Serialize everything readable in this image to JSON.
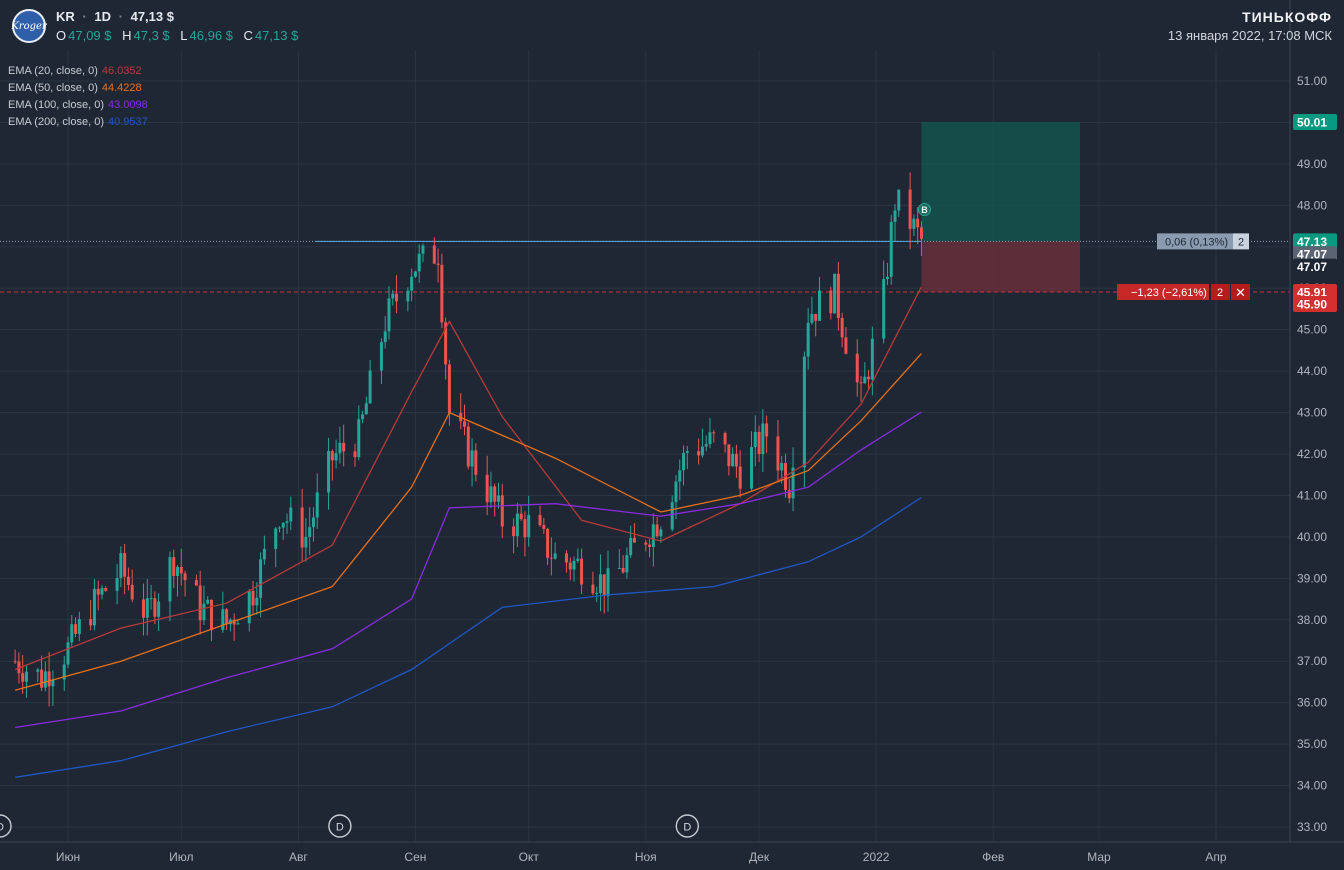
{
  "header": {
    "logo_text": "Kroger",
    "symbol": "KR",
    "interval": "1D",
    "price": "47,13 $",
    "ohlc": [
      {
        "key": "O",
        "value": "47,09 $"
      },
      {
        "key": "H",
        "value": "47,3 $"
      },
      {
        "key": "L",
        "value": "46,96 $"
      },
      {
        "key": "C",
        "value": "47,13 $"
      }
    ],
    "brand": "ТИНЬКОФФ",
    "datetime": "13 января 2022, 17:08 МСК"
  },
  "indicators": [
    {
      "label": "EMA (20, close, 0)",
      "value": "46.0352",
      "color": "#b83a3a"
    },
    {
      "label": "EMA (50, close, 0)",
      "value": "44.4228",
      "color": "#e8701a"
    },
    {
      "label": "EMA (100, close, 0)",
      "value": "43.0098",
      "color": "#8a2be2"
    },
    {
      "label": "EMA (200, close, 0)",
      "value": "40.9537",
      "color": "#1f57c6"
    }
  ],
  "colors": {
    "up": "#26a69a",
    "down": "#ef5350",
    "background": "#1e2733",
    "grid": "#2a3442"
  },
  "chart_data": {
    "type": "candlestick",
    "x_labels": [
      "Июн",
      "Июл",
      "Авг",
      "Сен",
      "Окт",
      "Ноя",
      "Дек",
      "2022",
      "Фев",
      "Мар",
      "Апр"
    ],
    "y_ticks": [
      "51.00",
      "50.00",
      "49.00",
      "48.00",
      "47.00",
      "46.00",
      "45.00",
      "44.00",
      "43.00",
      "42.00",
      "41.00",
      "40.00",
      "39.00",
      "38.00",
      "37.00",
      "36.00",
      "35.00",
      "34.00",
      "33.00"
    ],
    "ylim": [
      32.7,
      51.6
    ],
    "close_series": [
      [
        "2021-05-18",
        37.0
      ],
      [
        "2021-05-25",
        36.6
      ],
      [
        "2021-06-01",
        37.3
      ],
      [
        "2021-06-08",
        38.4
      ],
      [
        "2021-06-15",
        39.2
      ],
      [
        "2021-06-22",
        38.1
      ],
      [
        "2021-06-29",
        39.5
      ],
      [
        "2021-07-06",
        38.3
      ],
      [
        "2021-07-13",
        37.9
      ],
      [
        "2021-07-20",
        38.7
      ],
      [
        "2021-07-27",
        40.6
      ],
      [
        "2021-08-03",
        40.0
      ],
      [
        "2021-08-10",
        41.9
      ],
      [
        "2021-08-17",
        42.4
      ],
      [
        "2021-08-24",
        45.2
      ],
      [
        "2021-08-31",
        46.5
      ],
      [
        "2021-09-07",
        46.9
      ],
      [
        "2021-09-10",
        43.0
      ],
      [
        "2021-09-17",
        41.7
      ],
      [
        "2021-09-24",
        40.4
      ],
      [
        "2021-10-01",
        40.3
      ],
      [
        "2021-10-08",
        39.5
      ],
      [
        "2021-10-15",
        39.3
      ],
      [
        "2021-10-22",
        38.8
      ],
      [
        "2021-10-29",
        39.7
      ],
      [
        "2021-11-05",
        40.5
      ],
      [
        "2021-11-12",
        42.1
      ],
      [
        "2021-11-19",
        42.3
      ],
      [
        "2021-11-26",
        41.6
      ],
      [
        "2021-12-03",
        42.5
      ],
      [
        "2021-12-09",
        41.3
      ],
      [
        "2021-12-14",
        45.4
      ],
      [
        "2021-12-21",
        45.9
      ],
      [
        "2021-12-28",
        43.3
      ],
      [
        "2022-01-03",
        45.8
      ],
      [
        "2022-01-06",
        48.1
      ],
      [
        "2022-01-10",
        47.6
      ],
      [
        "2022-01-13",
        47.13
      ]
    ],
    "ema": [
      {
        "name": "EMA 20",
        "points": [
          [
            "2021-05-18",
            36.8
          ],
          [
            "2021-06-15",
            37.8
          ],
          [
            "2021-07-13",
            38.4
          ],
          [
            "2021-08-10",
            39.8
          ],
          [
            "2021-08-31",
            43.5
          ],
          [
            "2021-09-10",
            45.2
          ],
          [
            "2021-09-24",
            42.9
          ],
          [
            "2021-10-15",
            40.4
          ],
          [
            "2021-11-05",
            39.9
          ],
          [
            "2021-11-26",
            40.8
          ],
          [
            "2021-12-14",
            41.8
          ],
          [
            "2021-12-28",
            43.2
          ],
          [
            "2022-01-13",
            46.0352
          ]
        ]
      },
      {
        "name": "EMA 50",
        "points": [
          [
            "2021-05-18",
            36.3
          ],
          [
            "2021-06-15",
            37.0
          ],
          [
            "2021-07-13",
            37.9
          ],
          [
            "2021-08-10",
            38.8
          ],
          [
            "2021-08-31",
            41.2
          ],
          [
            "2021-09-10",
            43.0
          ],
          [
            "2021-10-08",
            41.9
          ],
          [
            "2021-11-05",
            40.6
          ],
          [
            "2021-11-26",
            41.0
          ],
          [
            "2021-12-14",
            41.6
          ],
          [
            "2021-12-28",
            42.8
          ],
          [
            "2022-01-13",
            44.4228
          ]
        ]
      },
      {
        "name": "EMA 100",
        "points": [
          [
            "2021-05-18",
            35.4
          ],
          [
            "2021-06-15",
            35.8
          ],
          [
            "2021-07-13",
            36.6
          ],
          [
            "2021-08-10",
            37.3
          ],
          [
            "2021-08-31",
            38.5
          ],
          [
            "2021-09-10",
            40.7
          ],
          [
            "2021-10-08",
            40.8
          ],
          [
            "2021-11-05",
            40.5
          ],
          [
            "2021-11-26",
            40.8
          ],
          [
            "2021-12-14",
            41.2
          ],
          [
            "2021-12-28",
            42.1
          ],
          [
            "2022-01-13",
            43.0098
          ]
        ]
      },
      {
        "name": "EMA 200",
        "points": [
          [
            "2021-05-18",
            34.2
          ],
          [
            "2021-06-15",
            34.6
          ],
          [
            "2021-07-13",
            35.3
          ],
          [
            "2021-08-10",
            35.9
          ],
          [
            "2021-08-31",
            36.8
          ],
          [
            "2021-09-24",
            38.3
          ],
          [
            "2021-10-22",
            38.6
          ],
          [
            "2021-11-19",
            38.8
          ],
          [
            "2021-12-14",
            39.4
          ],
          [
            "2021-12-28",
            40.0
          ],
          [
            "2022-01-13",
            40.9537
          ]
        ]
      }
    ],
    "levels": {
      "last": 47.13,
      "stop": 45.91,
      "target": 50.01
    },
    "position": {
      "entry_date": "2022-01-13",
      "end_date": "2022-02-24",
      "entry": 47.13,
      "stop": 45.91,
      "target": 50.01
    },
    "price_tags": [
      {
        "value": "50.01",
        "color": "#089981",
        "price": 50.01
      },
      {
        "value": "47.13",
        "color": "#089981",
        "price": 47.13
      },
      {
        "value": "47.07",
        "color": "#5b6472",
        "price": 46.82
      },
      {
        "value": "47.07",
        "color": "#1e2733",
        "price": 46.52
      },
      {
        "value": "45.91",
        "color": "#d32f2f",
        "price": 45.91
      },
      {
        "value": "45.90",
        "color": "#d32f2f",
        "price": 45.62
      }
    ],
    "badges": [
      {
        "text": "0,06 (0,13%)",
        "qty": "2",
        "kind": "info",
        "price": 47.13
      },
      {
        "text": "−1,23 (−2,61%)",
        "qty": "2",
        "kind": "loss",
        "price": 45.91,
        "close": "✕"
      }
    ],
    "markers": [
      {
        "text": "B",
        "date": "2022-01-13",
        "price": 47.9
      }
    ],
    "dividends": [
      {
        "text": "D",
        "date": "2021-05-12"
      },
      {
        "text": "D",
        "date": "2021-08-12"
      },
      {
        "text": "D",
        "date": "2021-11-12"
      }
    ]
  }
}
